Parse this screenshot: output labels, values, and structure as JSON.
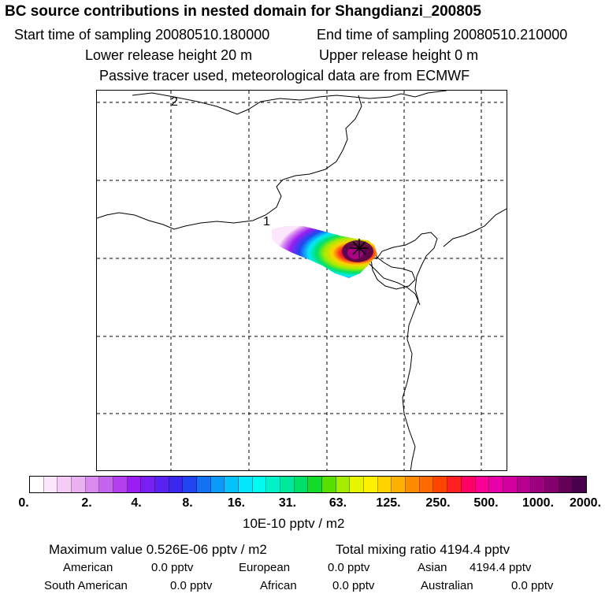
{
  "header": {
    "title": "BC  source contributions in nested domain for Shangdianzi_200805",
    "start_time": "Start time of sampling 20080510.180000",
    "end_time": "End time of sampling 20080510.210000",
    "lower_height": "Lower release height   20 m",
    "upper_height": "Upper release height    0 m",
    "tracer_info": "Passive tracer used, meteorological data are from ECMWF"
  },
  "map": {
    "label_1": "1",
    "label_2": "2"
  },
  "colorbar": {
    "colors": [
      "#ffffff",
      "#fbe6fb",
      "#f4ccf6",
      "#e9b0f2",
      "#d98af0",
      "#c764ee",
      "#b43ff0",
      "#9a1ef2",
      "#7a1ff2",
      "#5a22f0",
      "#3b28ef",
      "#2045f0",
      "#1570f4",
      "#0b9af8",
      "#07c2fb",
      "#04e8fd",
      "#00fbf1",
      "#00f2c8",
      "#00e89a",
      "#00e066",
      "#14da2a",
      "#5ae000",
      "#a5ec00",
      "#e6f500",
      "#fff000",
      "#ffd200",
      "#ffb000",
      "#ff8c00",
      "#ff6a00",
      "#ff4400",
      "#ff1f20",
      "#ff0066",
      "#f80095",
      "#e800a8",
      "#d2009f",
      "#b80090",
      "#9e007f",
      "#83006d",
      "#650059",
      "#48004a"
    ],
    "ticks": [
      "0.",
      "2.",
      "4.",
      "8.",
      "16.",
      "31.",
      "63.",
      "125.",
      "250.",
      "500.",
      "1000.",
      "2000."
    ],
    "units": "10E-10 pptv / m2"
  },
  "summary": {
    "max_value": "Maximum value  0.526E-06 pptv / m2",
    "total_mixing": "Total mixing ratio     4194.4 pptv",
    "american_label": "American",
    "american_value": "0.0 pptv",
    "european_label": "European",
    "european_value": "0.0 pptv",
    "asian_label": "Asian",
    "asian_value": "4194.4 pptv",
    "south_american_label": "South American",
    "south_american_value": "0.0 pptv",
    "african_label": "African",
    "african_value": "0.0 pptv",
    "australian_label": "Australian",
    "australian_value": "0.0 pptv"
  }
}
